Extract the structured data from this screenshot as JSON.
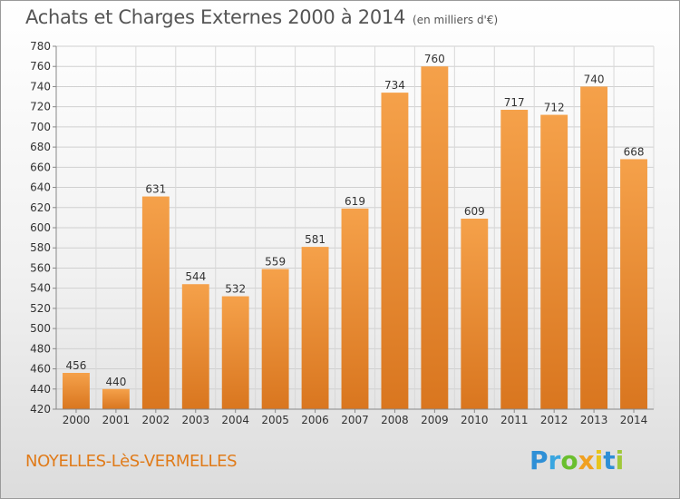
{
  "chart_data": {
    "type": "bar",
    "title": "Achats et Charges Externes 2000 à 2014",
    "unit_note": "(en milliers d'€)",
    "categories": [
      "2000",
      "2001",
      "2002",
      "2003",
      "2004",
      "2005",
      "2006",
      "2007",
      "2008",
      "2009",
      "2010",
      "2011",
      "2012",
      "2013",
      "2014"
    ],
    "values": [
      456,
      440,
      631,
      544,
      532,
      559,
      581,
      619,
      734,
      760,
      609,
      717,
      712,
      740,
      668
    ],
    "ylim": [
      420,
      780
    ],
    "yticks": [
      420,
      440,
      460,
      480,
      500,
      520,
      540,
      560,
      580,
      600,
      620,
      640,
      660,
      680,
      700,
      720,
      740,
      760,
      780
    ],
    "grid": true,
    "bar_color_light": "#f5a14a",
    "bar_color_dark": "#d9761f"
  },
  "footer": {
    "city": "NOYELLES-LèS-VERMELLES",
    "logo_letters": [
      "P",
      "r",
      "o",
      "x",
      "i",
      "t",
      "i"
    ]
  }
}
